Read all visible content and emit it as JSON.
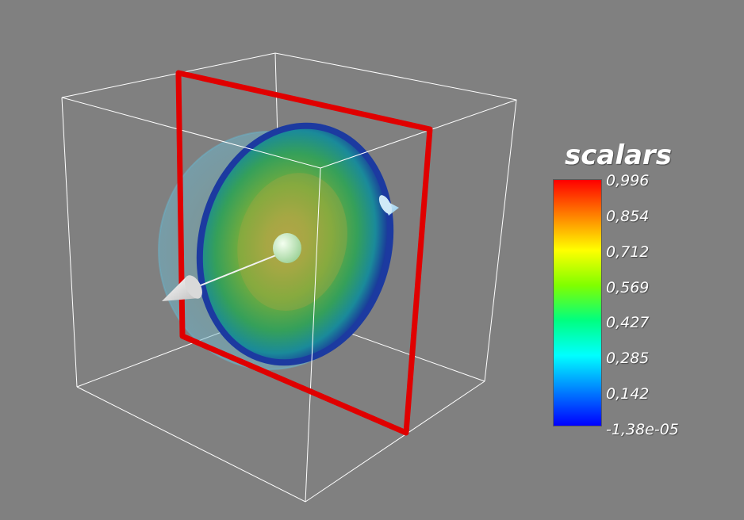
{
  "legend": {
    "title": "scalars",
    "labels": [
      "0,996",
      "0,854",
      "0,712",
      "0,569",
      "0,427",
      "0,285",
      "0,142",
      "-1,38e-05"
    ],
    "colormap": [
      "#ff0000",
      "#ff8000",
      "#ffff00",
      "#80ff00",
      "#00ff80",
      "#00ffff",
      "#0080ff",
      "#0000ff"
    ]
  },
  "colors": {
    "background": "#808080",
    "outline_box": "#ffffff",
    "plane_outline": "#e00000",
    "widget_arrow": "#f2f2f2",
    "widget_handle": "#c8f0c0"
  }
}
